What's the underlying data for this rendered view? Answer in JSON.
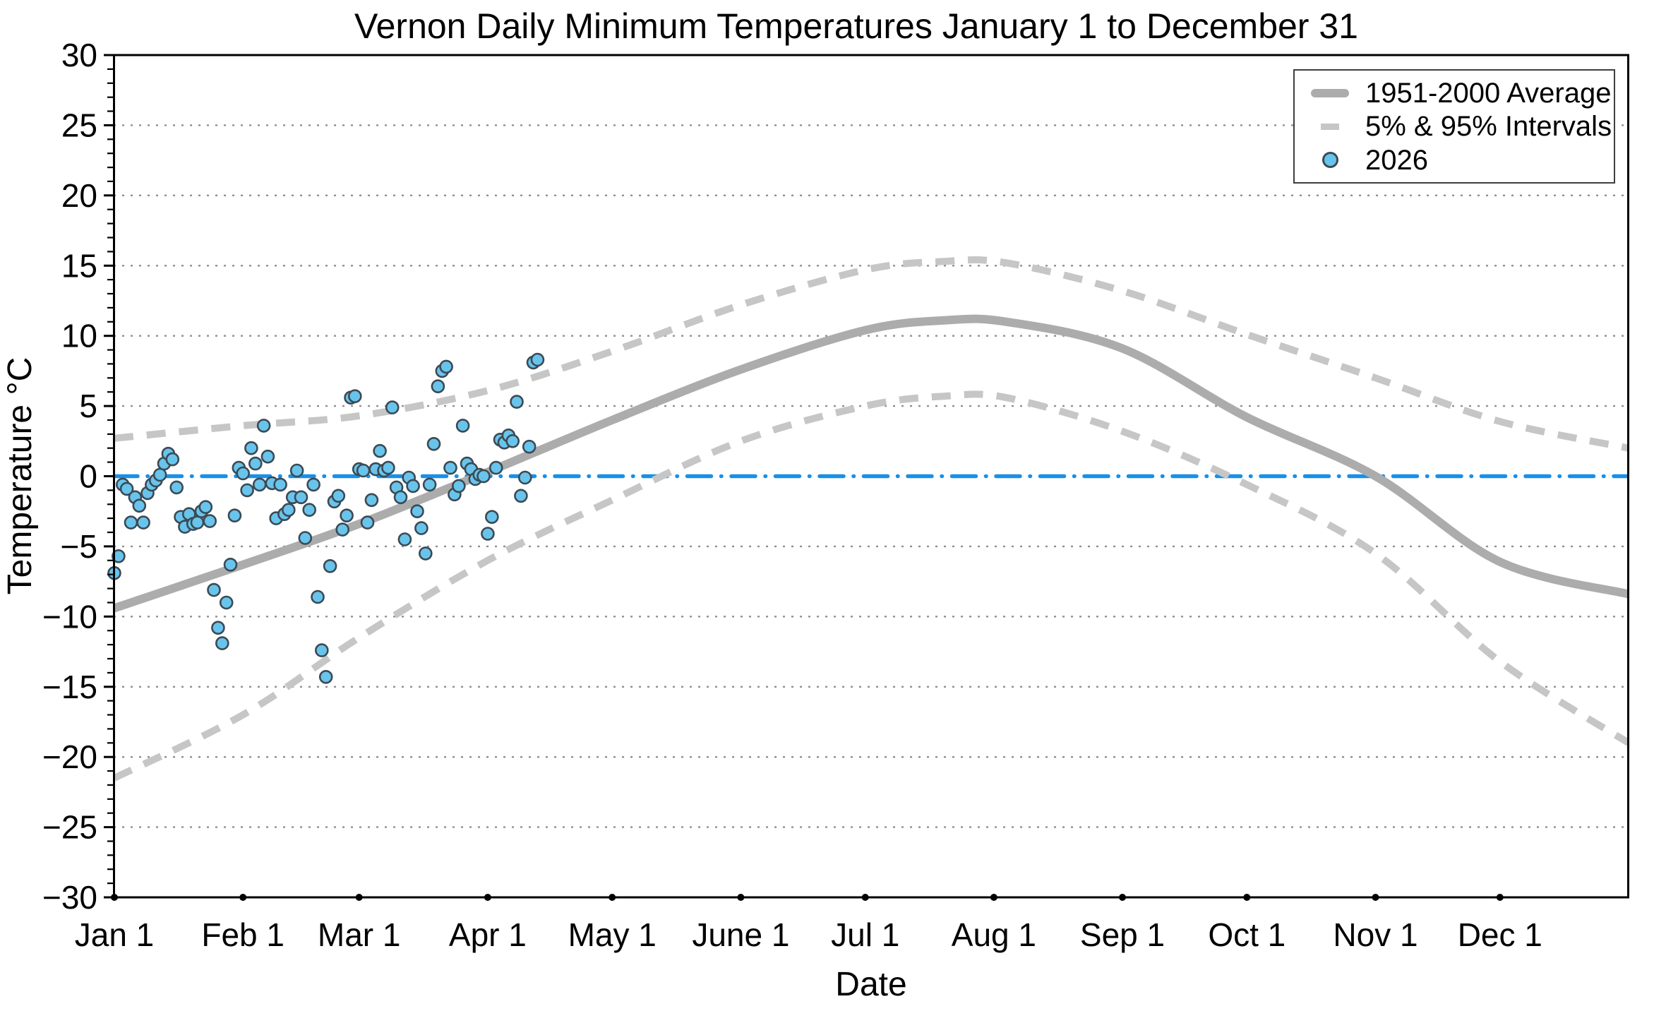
{
  "title": "Vernon Daily Minimum Temperatures January 1 to December 31",
  "x_axis": {
    "label": "Date",
    "tick_labels": [
      "Jan 1",
      "Feb 1",
      "Mar 1",
      "Apr 1",
      "May 1",
      "June 1",
      "Jul 1",
      "Aug 1",
      "Sep 1",
      "Oct 1",
      "Nov 1",
      "Dec 1"
    ],
    "tick_days": [
      0,
      31,
      59,
      90,
      120,
      151,
      181,
      212,
      243,
      273,
      304,
      334
    ]
  },
  "y_axis": {
    "label": "Temperature °C",
    "min": -30,
    "max": 30,
    "major_step": 5,
    "minor_step": 1,
    "tick_values": [
      30,
      25,
      20,
      15,
      10,
      5,
      0,
      -5,
      -10,
      -15,
      -20,
      -25,
      -30
    ],
    "tick_labels": [
      "30",
      "25",
      "20",
      "15",
      "10",
      "5",
      "0",
      "−5",
      "−10",
      "−15",
      "−20",
      "−25",
      "−30"
    ],
    "gridline_values": [
      25,
      20,
      15,
      10,
      5,
      -5,
      -10,
      -15,
      -20,
      -25
    ]
  },
  "legend": {
    "position": "top-right",
    "items": [
      {
        "label": "1951-2000 Average",
        "swatch": "thick-gray-line"
      },
      {
        "label": "5% & 95% Intervals",
        "swatch": "gray-dash"
      },
      {
        "label": "2026",
        "swatch": "blue-circle"
      }
    ]
  },
  "colors": {
    "average_line": "#acacac",
    "interval_dash": "#c6c6c6",
    "zero_line_blue": "#1990e8",
    "point_fill": "#69c4ec",
    "point_stroke": "#3b4a54",
    "gridline": "#8f8f8f",
    "axis": "#000000",
    "background": "#ffffff"
  },
  "chart_data": {
    "type": "scatter",
    "title": "Vernon Daily Minimum Temperatures January 1 to December 31",
    "xlabel": "Date",
    "ylabel": "Temperature °C",
    "ylim": [
      -30,
      30
    ],
    "xlim_days": [
      0,
      365
    ],
    "grid": "horizontal dotted every 5°C",
    "legend_position": "top-right",
    "series": [
      {
        "name": "1951-2000 Average",
        "type": "line",
        "color": "#acacac",
        "width": 12,
        "points_day_value": [
          [
            0,
            -9.4
          ],
          [
            31,
            -6.3
          ],
          [
            59,
            -3.4
          ],
          [
            90,
            0.3
          ],
          [
            120,
            4.0
          ],
          [
            151,
            7.6
          ],
          [
            181,
            10.4
          ],
          [
            200,
            11.1
          ],
          [
            215,
            11.0
          ],
          [
            243,
            9.1
          ],
          [
            273,
            4.2
          ],
          [
            304,
            0.0
          ],
          [
            334,
            -6.1
          ],
          [
            365,
            -8.4
          ]
        ]
      },
      {
        "name": "5% & 95% Intervals",
        "type": "band-outline",
        "color": "#c6c6c6",
        "dashed": true,
        "width": 10,
        "upper_day_value": [
          [
            0,
            2.7
          ],
          [
            31,
            3.6
          ],
          [
            59,
            4.3
          ],
          [
            90,
            6.1
          ],
          [
            120,
            8.9
          ],
          [
            151,
            12.2
          ],
          [
            181,
            14.7
          ],
          [
            200,
            15.3
          ],
          [
            215,
            15.2
          ],
          [
            243,
            13.2
          ],
          [
            273,
            10.1
          ],
          [
            304,
            7.0
          ],
          [
            334,
            3.9
          ],
          [
            365,
            2.0
          ]
        ],
        "lower_day_value": [
          [
            0,
            -21.5
          ],
          [
            31,
            -17.0
          ],
          [
            59,
            -11.5
          ],
          [
            90,
            -6.0
          ],
          [
            120,
            -1.7
          ],
          [
            151,
            2.5
          ],
          [
            181,
            5.0
          ],
          [
            200,
            5.7
          ],
          [
            215,
            5.6
          ],
          [
            243,
            3.2
          ],
          [
            273,
            -0.6
          ],
          [
            304,
            -5.5
          ],
          [
            334,
            -13.2
          ],
          [
            365,
            -19.0
          ]
        ]
      },
      {
        "name": "2026",
        "type": "scatter",
        "marker": "circle",
        "fill": "#69c4ec",
        "stroke": "#3b4a54",
        "radius": 8.5,
        "start_date": "Jan 1",
        "daily_values": [
          -6.9,
          -5.7,
          -0.6,
          -0.9,
          -3.3,
          -1.5,
          -2.1,
          -3.3,
          -1.2,
          -0.6,
          -0.3,
          0.1,
          0.9,
          1.6,
          1.2,
          -0.8,
          -2.9,
          -3.6,
          -2.7,
          -3.4,
          -3.3,
          -2.5,
          -2.2,
          -3.2,
          -8.1,
          -10.8,
          -11.9,
          -9.0,
          -6.3,
          -2.8,
          0.6,
          0.2,
          -1.0,
          2.0,
          0.9,
          -0.6,
          3.6,
          1.4,
          -0.5,
          -3.0,
          -0.6,
          -2.7,
          -2.4,
          -1.5,
          0.4,
          -1.5,
          -4.4,
          -2.4,
          -0.6,
          -8.6,
          -12.4,
          -14.3,
          -6.4,
          -1.8,
          -1.4,
          -3.8,
          -2.8,
          5.6,
          5.7,
          0.5,
          0.4,
          -3.3,
          -1.7,
          0.5,
          1.8,
          0.4,
          0.6,
          4.9,
          -0.8,
          -1.5,
          -4.5,
          -0.1,
          -0.7,
          -2.5,
          -3.7,
          -5.5,
          -0.6,
          2.3,
          6.4,
          7.5,
          7.8,
          0.6,
          -1.3,
          -0.7,
          3.6,
          0.9,
          0.5,
          -0.2,
          0.1,
          0.0,
          -4.1,
          -2.9,
          0.6,
          2.6,
          2.4,
          2.9,
          2.5,
          5.3,
          -1.4,
          -0.1,
          2.1,
          8.1,
          8.3
        ]
      },
      {
        "name": "zero-reference-line",
        "type": "hline",
        "y": 0,
        "color": "#1990e8",
        "style": "dash-dot"
      }
    ]
  }
}
